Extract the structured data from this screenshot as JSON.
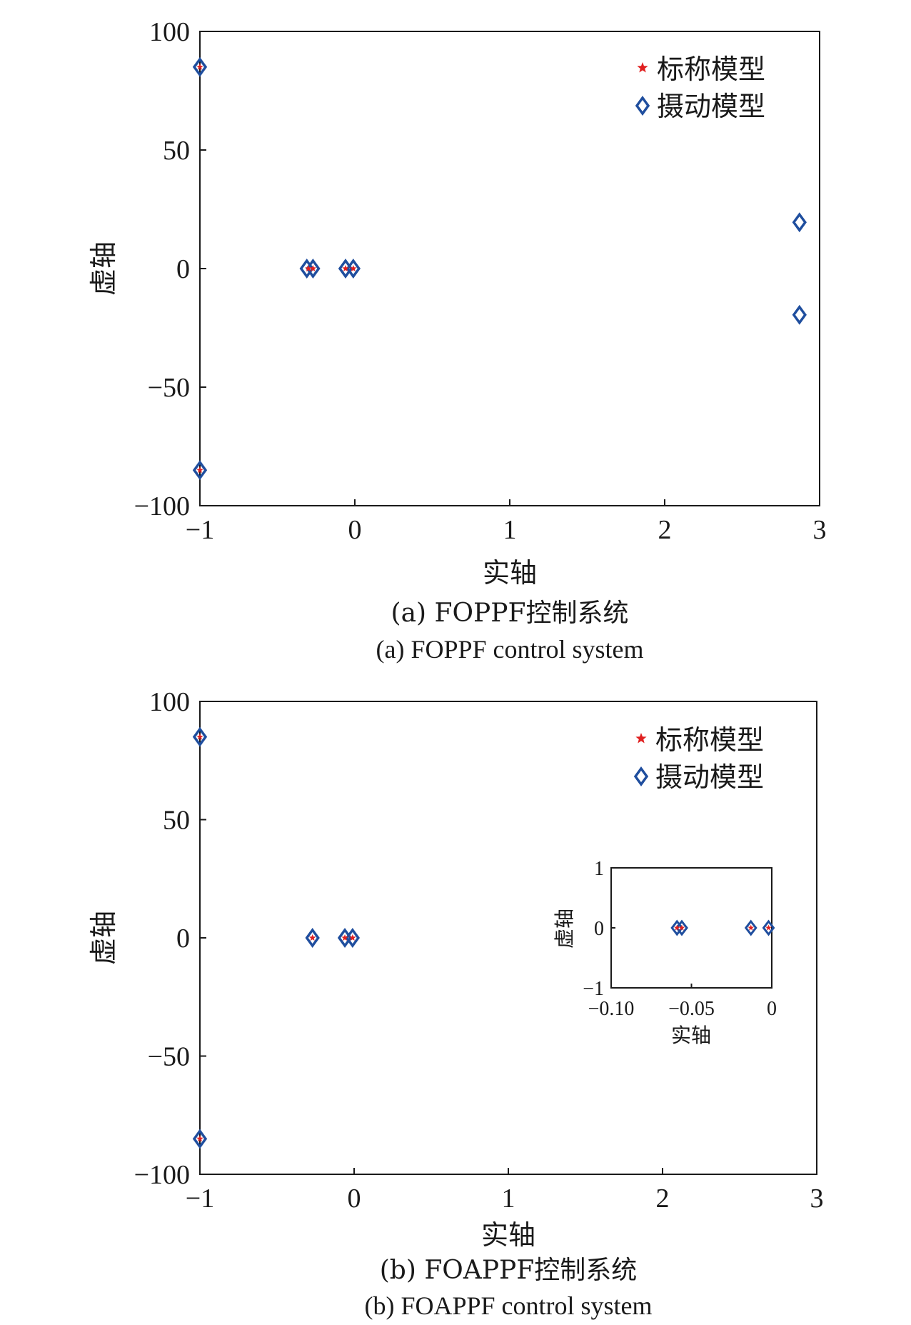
{
  "legend": {
    "nominal_label": "标称模型",
    "perturbed_label": "摄动模型",
    "nominal_color": "#e02020",
    "perturbed_color": "#1f4e9e"
  },
  "chart_data": [
    {
      "type": "scatter",
      "caption_zh": "(a) FOPPF控制系统",
      "caption_en": "(a) FOPPF control system",
      "xlabel": "实轴",
      "ylabel": "虚轴",
      "xlim": [
        -1,
        3
      ],
      "ylim": [
        -100,
        100
      ],
      "xticks": [
        -1,
        0,
        1,
        2,
        3
      ],
      "xtick_labels": [
        "−1",
        "0",
        "1",
        "2",
        "3"
      ],
      "yticks": [
        100,
        50,
        0,
        -50,
        -100
      ],
      "ytick_labels": [
        "100",
        "50",
        "0",
        "−50",
        "−100"
      ],
      "legend_position": "top-right",
      "series": [
        {
          "name": "标称模型",
          "marker": "star",
          "points": [
            [
              -1,
              85
            ],
            [
              -1,
              -85
            ],
            [
              -0.3,
              0
            ],
            [
              -0.27,
              0
            ],
            [
              -0.06,
              0
            ],
            [
              -0.01,
              0
            ]
          ]
        },
        {
          "name": "摄动模型",
          "marker": "diamond",
          "points": [
            [
              -1,
              85
            ],
            [
              -1,
              -85
            ],
            [
              -0.31,
              0
            ],
            [
              -0.27,
              0
            ],
            [
              -0.06,
              0
            ],
            [
              -0.01,
              0
            ],
            [
              2.87,
              19.5
            ],
            [
              2.87,
              -19.5
            ]
          ]
        }
      ]
    },
    {
      "type": "scatter",
      "caption_zh": "(b) FOAPPF控制系统",
      "caption_en": "(b) FOAPPF control system",
      "xlabel": "实轴",
      "ylabel": "虚轴",
      "xlim": [
        -1,
        3
      ],
      "ylim": [
        -100,
        100
      ],
      "xticks": [
        -1,
        0,
        1,
        2,
        3
      ],
      "xtick_labels": [
        "−1",
        "0",
        "1",
        "2",
        "3"
      ],
      "yticks": [
        100,
        50,
        0,
        -50,
        -100
      ],
      "ytick_labels": [
        "100",
        "50",
        "0",
        "−50",
        "−100"
      ],
      "legend_position": "top-right",
      "series": [
        {
          "name": "标称模型",
          "marker": "star",
          "points": [
            [
              -1,
              85
            ],
            [
              -1,
              -85
            ],
            [
              -0.27,
              0
            ],
            [
              -0.06,
              0
            ],
            [
              -0.01,
              0
            ]
          ]
        },
        {
          "name": "摄动模型",
          "marker": "diamond",
          "points": [
            [
              -1,
              85
            ],
            [
              -1,
              -85
            ],
            [
              -0.27,
              0
            ],
            [
              -0.06,
              0
            ],
            [
              -0.01,
              0
            ]
          ]
        }
      ],
      "inset": {
        "xlabel": "实轴",
        "ylabel": "虚轴",
        "xlim": [
          -0.1,
          0
        ],
        "ylim": [
          -1,
          1
        ],
        "xticks": [
          -0.1,
          -0.05,
          0
        ],
        "xtick_labels": [
          "−0.10",
          "−0.05",
          "0"
        ],
        "yticks": [
          1,
          0,
          -1
        ],
        "ytick_labels": [
          "1",
          "0",
          "−1"
        ],
        "series": [
          {
            "name": "标称模型",
            "marker": "star",
            "points": [
              [
                -0.059,
                0
              ],
              [
                -0.056,
                0
              ],
              [
                -0.013,
                0
              ],
              [
                -0.002,
                0
              ]
            ]
          },
          {
            "name": "摄动模型",
            "marker": "diamond",
            "points": [
              [
                -0.059,
                0
              ],
              [
                -0.056,
                0
              ],
              [
                -0.013,
                0
              ],
              [
                -0.002,
                0
              ]
            ]
          }
        ]
      }
    }
  ]
}
